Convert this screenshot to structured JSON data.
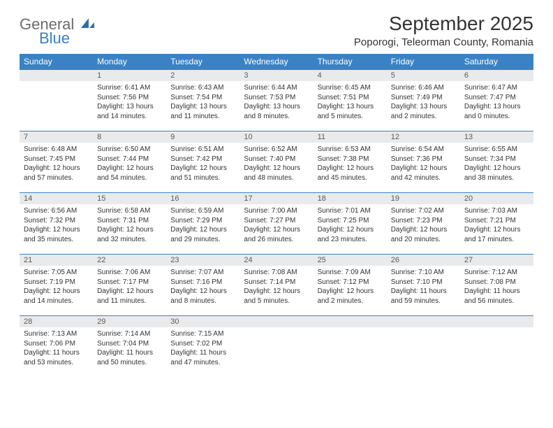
{
  "logo": {
    "word1": "General",
    "word2": "Blue"
  },
  "title": "September 2025",
  "location": "Poporogi, Teleorman County, Romania",
  "header_bg": "#3a82c4",
  "daynum_bg": "#e9eaeb",
  "weekdays": [
    "Sunday",
    "Monday",
    "Tuesday",
    "Wednesday",
    "Thursday",
    "Friday",
    "Saturday"
  ],
  "weeks": [
    [
      null,
      {
        "n": "1",
        "sr": "6:41 AM",
        "ss": "7:56 PM",
        "dl": "13 hours and 14 minutes."
      },
      {
        "n": "2",
        "sr": "6:43 AM",
        "ss": "7:54 PM",
        "dl": "13 hours and 11 minutes."
      },
      {
        "n": "3",
        "sr": "6:44 AM",
        "ss": "7:53 PM",
        "dl": "13 hours and 8 minutes."
      },
      {
        "n": "4",
        "sr": "6:45 AM",
        "ss": "7:51 PM",
        "dl": "13 hours and 5 minutes."
      },
      {
        "n": "5",
        "sr": "6:46 AM",
        "ss": "7:49 PM",
        "dl": "13 hours and 2 minutes."
      },
      {
        "n": "6",
        "sr": "6:47 AM",
        "ss": "7:47 PM",
        "dl": "13 hours and 0 minutes."
      }
    ],
    [
      {
        "n": "7",
        "sr": "6:48 AM",
        "ss": "7:45 PM",
        "dl": "12 hours and 57 minutes."
      },
      {
        "n": "8",
        "sr": "6:50 AM",
        "ss": "7:44 PM",
        "dl": "12 hours and 54 minutes."
      },
      {
        "n": "9",
        "sr": "6:51 AM",
        "ss": "7:42 PM",
        "dl": "12 hours and 51 minutes."
      },
      {
        "n": "10",
        "sr": "6:52 AM",
        "ss": "7:40 PM",
        "dl": "12 hours and 48 minutes."
      },
      {
        "n": "11",
        "sr": "6:53 AM",
        "ss": "7:38 PM",
        "dl": "12 hours and 45 minutes."
      },
      {
        "n": "12",
        "sr": "6:54 AM",
        "ss": "7:36 PM",
        "dl": "12 hours and 42 minutes."
      },
      {
        "n": "13",
        "sr": "6:55 AM",
        "ss": "7:34 PM",
        "dl": "12 hours and 38 minutes."
      }
    ],
    [
      {
        "n": "14",
        "sr": "6:56 AM",
        "ss": "7:32 PM",
        "dl": "12 hours and 35 minutes."
      },
      {
        "n": "15",
        "sr": "6:58 AM",
        "ss": "7:31 PM",
        "dl": "12 hours and 32 minutes."
      },
      {
        "n": "16",
        "sr": "6:59 AM",
        "ss": "7:29 PM",
        "dl": "12 hours and 29 minutes."
      },
      {
        "n": "17",
        "sr": "7:00 AM",
        "ss": "7:27 PM",
        "dl": "12 hours and 26 minutes."
      },
      {
        "n": "18",
        "sr": "7:01 AM",
        "ss": "7:25 PM",
        "dl": "12 hours and 23 minutes."
      },
      {
        "n": "19",
        "sr": "7:02 AM",
        "ss": "7:23 PM",
        "dl": "12 hours and 20 minutes."
      },
      {
        "n": "20",
        "sr": "7:03 AM",
        "ss": "7:21 PM",
        "dl": "12 hours and 17 minutes."
      }
    ],
    [
      {
        "n": "21",
        "sr": "7:05 AM",
        "ss": "7:19 PM",
        "dl": "12 hours and 14 minutes."
      },
      {
        "n": "22",
        "sr": "7:06 AM",
        "ss": "7:17 PM",
        "dl": "12 hours and 11 minutes."
      },
      {
        "n": "23",
        "sr": "7:07 AM",
        "ss": "7:16 PM",
        "dl": "12 hours and 8 minutes."
      },
      {
        "n": "24",
        "sr": "7:08 AM",
        "ss": "7:14 PM",
        "dl": "12 hours and 5 minutes."
      },
      {
        "n": "25",
        "sr": "7:09 AM",
        "ss": "7:12 PM",
        "dl": "12 hours and 2 minutes."
      },
      {
        "n": "26",
        "sr": "7:10 AM",
        "ss": "7:10 PM",
        "dl": "11 hours and 59 minutes."
      },
      {
        "n": "27",
        "sr": "7:12 AM",
        "ss": "7:08 PM",
        "dl": "11 hours and 56 minutes."
      }
    ],
    [
      {
        "n": "28",
        "sr": "7:13 AM",
        "ss": "7:06 PM",
        "dl": "11 hours and 53 minutes."
      },
      {
        "n": "29",
        "sr": "7:14 AM",
        "ss": "7:04 PM",
        "dl": "11 hours and 50 minutes."
      },
      {
        "n": "30",
        "sr": "7:15 AM",
        "ss": "7:02 PM",
        "dl": "11 hours and 47 minutes."
      },
      null,
      null,
      null,
      null
    ]
  ],
  "labels": {
    "sunrise": "Sunrise:",
    "sunset": "Sunset:",
    "daylight": "Daylight:"
  }
}
